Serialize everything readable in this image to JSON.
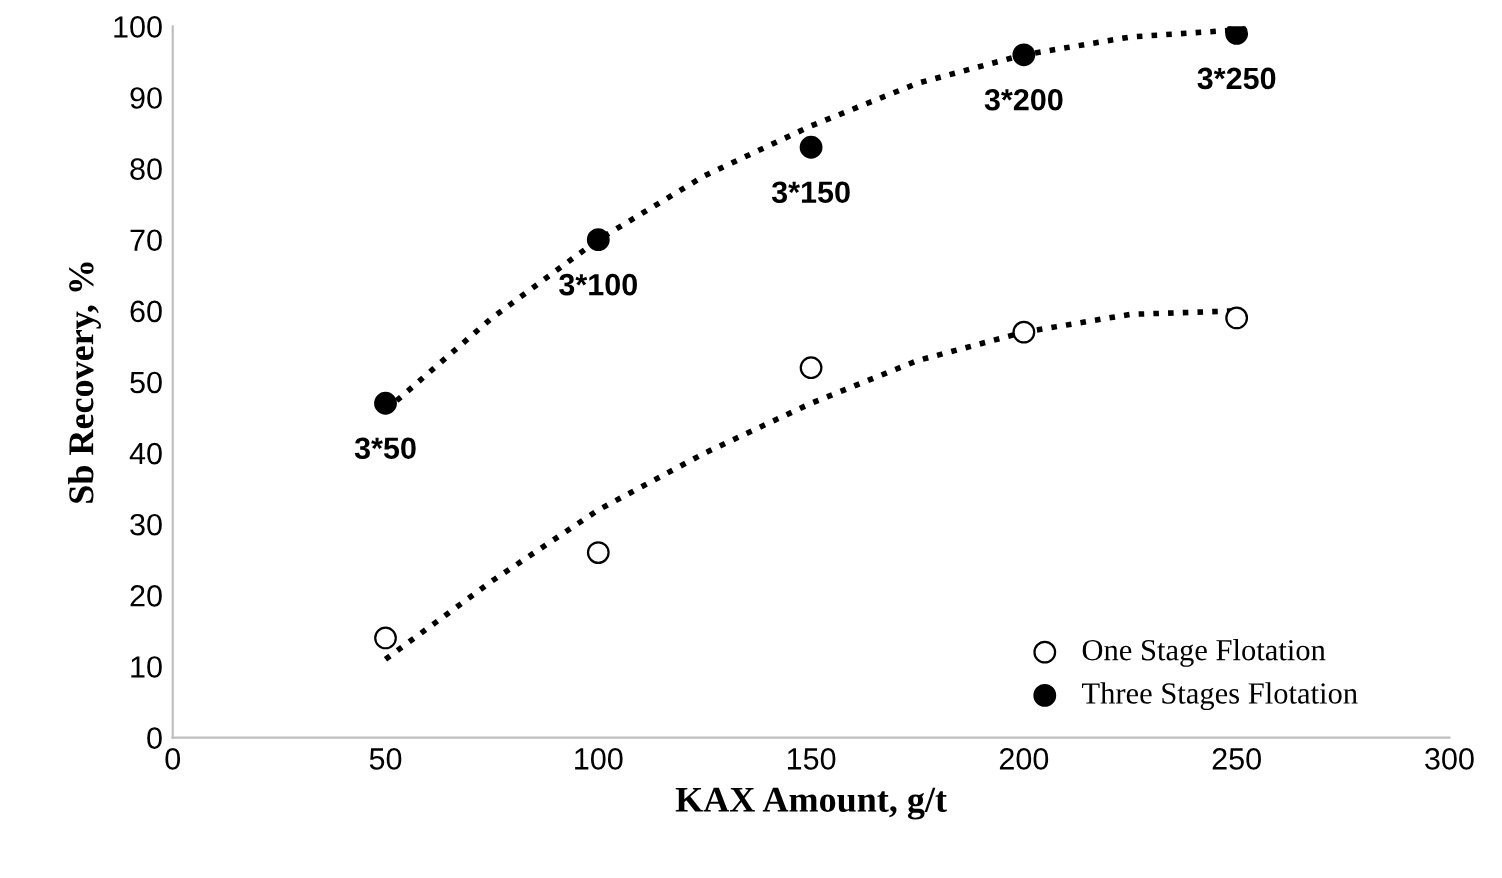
{
  "chart_data": {
    "type": "scatter",
    "xlabel": "KAX Amount, g/t",
    "ylabel": "Sb Recovery, %",
    "xlim": [
      0,
      300
    ],
    "xticks": [
      0,
      50,
      100,
      150,
      200,
      250,
      300
    ],
    "ylim": [
      0,
      100
    ],
    "yticks": [
      0,
      10,
      20,
      30,
      40,
      50,
      60,
      70,
      80,
      90,
      100
    ],
    "grid": false,
    "legend": "bottom right",
    "marker": "circle",
    "series": [
      {
        "name": "One Stage Flotation",
        "color": "#ffffff",
        "x": [
          50,
          100,
          150,
          200,
          250
        ],
        "values": [
          14,
          26,
          52,
          57,
          59
        ]
      },
      {
        "name": "Three Stages Flotation",
        "color": "#000000",
        "x": [
          50,
          100,
          150,
          200,
          250
        ],
        "values": [
          47,
          70,
          83,
          96,
          99
        ]
      },
      {
        "type": "line",
        "line_style": "dotted",
        "marker": "none",
        "color": "#000000",
        "x": [
          50,
          75,
          100,
          125,
          150,
          175,
          200,
          225,
          250
        ],
        "values": [
          11,
          22,
          32,
          40,
          47,
          53,
          57,
          59.5,
          60
        ]
      },
      {
        "type": "line",
        "line_style": "dotted",
        "marker": "none",
        "color": "#000000",
        "x": [
          50,
          75,
          100,
          125,
          150,
          175,
          200,
          225,
          250
        ],
        "values": [
          46,
          59,
          70,
          79,
          86,
          92,
          96,
          98.5,
          99.5
        ]
      }
    ],
    "annotations": [
      {
        "text": "3*50",
        "x": 50,
        "y": 47
      },
      {
        "text": "3*100",
        "x": 100,
        "y": 70
      },
      {
        "text": "3*150",
        "x": 150,
        "y": 83
      },
      {
        "text": "3*200",
        "x": 200,
        "y": 96
      },
      {
        "text": "3*250",
        "x": 250,
        "y": 99
      }
    ]
  }
}
